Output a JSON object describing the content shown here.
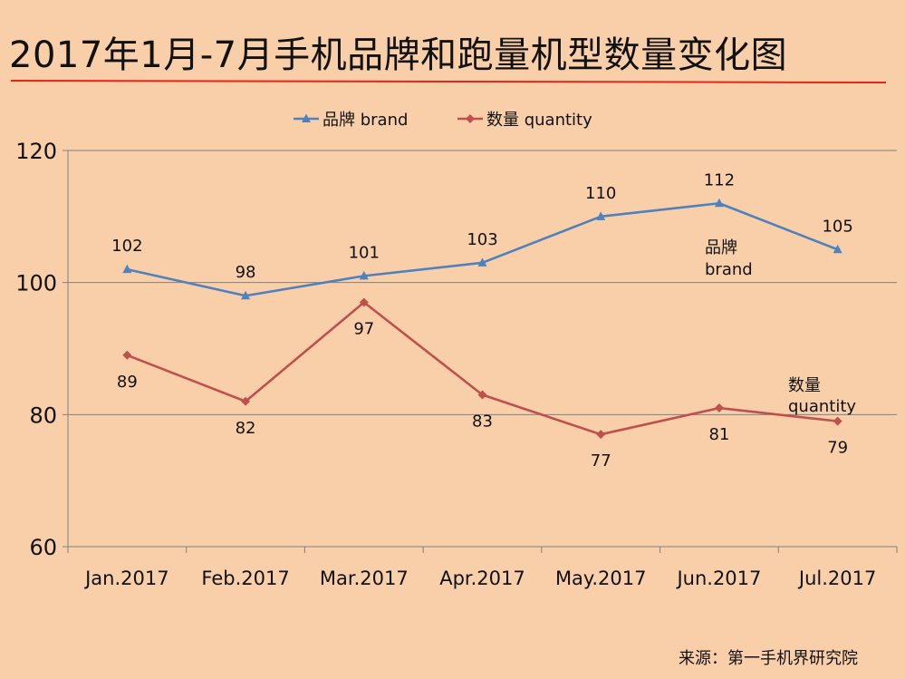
{
  "title": "2017年1月-7月手机品牌和跑量机型数量变化图",
  "source": "来源：第一手机界研究院",
  "chart_data": {
    "type": "line",
    "categories": [
      "Jan.2017",
      "Feb.2017",
      "Mar.2017",
      "Apr.2017",
      "May.2017",
      "Jun.2017",
      "Jul.2017"
    ],
    "series": [
      {
        "name": "品牌 brand",
        "values": [
          102,
          98,
          101,
          103,
          110,
          112,
          105
        ],
        "color": "#4f81bd",
        "marker": "triangle",
        "label_position": "above",
        "end_label": [
          "品牌",
          "brand"
        ]
      },
      {
        "name": "数量 quantity",
        "values": [
          89,
          82,
          97,
          83,
          77,
          81,
          79
        ],
        "color": "#c0504d",
        "marker": "diamond",
        "label_position": "below",
        "end_label": [
          "数量",
          "quantity"
        ]
      }
    ],
    "ylim": [
      60,
      120
    ],
    "yticks": [
      60,
      80,
      100,
      120
    ],
    "grid": true,
    "legend_position": "top",
    "colors": {
      "background": "#f9cfaa",
      "title_rule": "#e0271b",
      "axis": "#808080"
    }
  }
}
